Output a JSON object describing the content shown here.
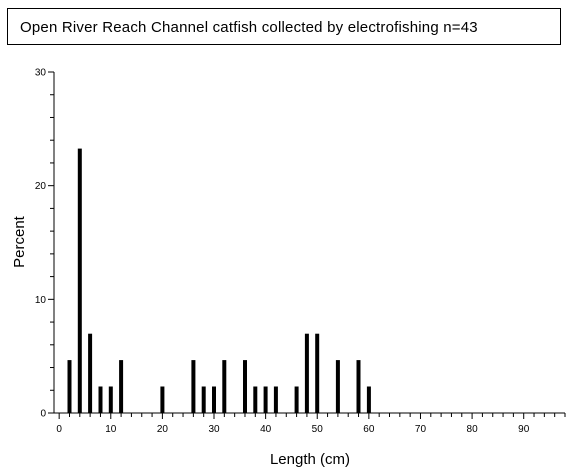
{
  "chart_data": {
    "type": "bar",
    "title": "Open River Reach Channel catfish collected by electrofishing n=43",
    "xlabel": "Length (cm)",
    "ylabel": "Percent",
    "x_ticks": [
      0,
      10,
      20,
      30,
      40,
      50,
      60,
      70,
      80,
      90
    ],
    "y_ticks": [
      0,
      10,
      20,
      30
    ],
    "xlim": [
      -1,
      98
    ],
    "ylim": [
      0,
      30
    ],
    "minor_x_step": 2,
    "minor_y_step": 2,
    "grid": false,
    "x": [
      2,
      4,
      6,
      8,
      10,
      12,
      20,
      26,
      28,
      30,
      32,
      36,
      38,
      40,
      42,
      46,
      48,
      50,
      54,
      58,
      60
    ],
    "values": [
      4.65,
      23.26,
      6.98,
      2.33,
      2.33,
      4.65,
      2.33,
      4.65,
      2.33,
      2.33,
      4.65,
      4.65,
      2.33,
      2.33,
      2.33,
      2.33,
      6.98,
      6.98,
      4.65,
      4.65,
      2.33
    ],
    "bar_color": "#000000"
  }
}
